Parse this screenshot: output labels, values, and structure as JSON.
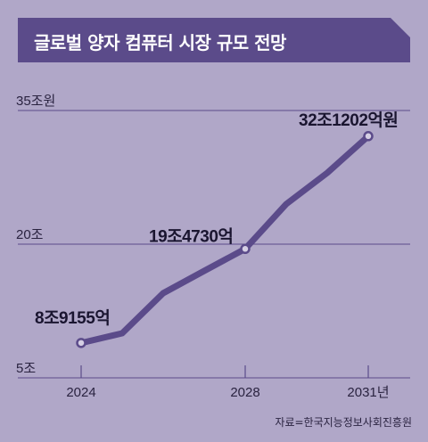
{
  "title": "글로벌 양자 컴퓨터 시장 규모 전망",
  "source": "자료=한국지능정보사회진흥원",
  "chart_data": {
    "type": "line",
    "title": "글로벌 양자 컴퓨터 시장 규모 전망",
    "x": [
      2024,
      2025,
      2026,
      2027,
      2028,
      2029,
      2030,
      2031
    ],
    "x_ticks": [
      "2024",
      "2028",
      "2031년"
    ],
    "x_tick_values": [
      2024,
      2028,
      2031
    ],
    "series": [
      {
        "values": [
          8.9155,
          10.0,
          14.5,
          17.0,
          19.473,
          24.5,
          28.0,
          32.1202
        ]
      }
    ],
    "y_ticks": [
      "35조원",
      "20조",
      "5조"
    ],
    "y_tick_values": [
      35,
      20,
      5
    ],
    "ylim": [
      5,
      35
    ],
    "xlim": [
      2024,
      2031
    ],
    "annotations": [
      {
        "x": 2024,
        "y": 8.9155,
        "label": "8조9155억"
      },
      {
        "x": 2028,
        "y": 19.473,
        "label": "19조4730억"
      },
      {
        "x": 2031,
        "y": 32.1202,
        "label": "32조1202억원"
      }
    ],
    "colors": {
      "line": "#5b4b8a",
      "marker_fill": "#d5cfe4",
      "grid": "#5b4b8a",
      "background": "#b0a7c8"
    },
    "grid": true
  }
}
